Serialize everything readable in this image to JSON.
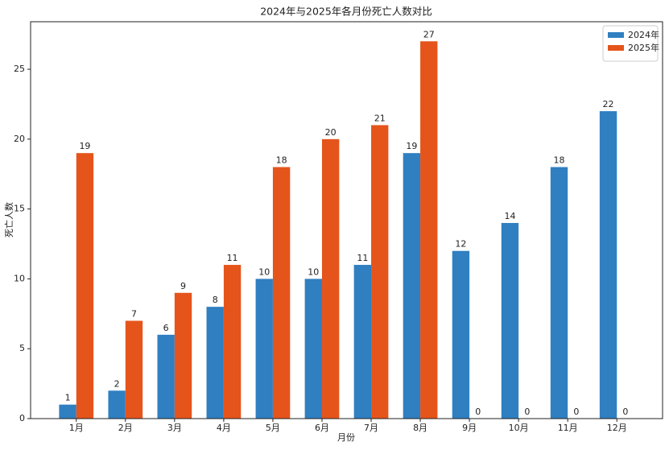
{
  "chart_data": {
    "type": "bar",
    "title": "2024年与2025年各月份死亡人数对比",
    "x_label": "月份",
    "y_label": "死亡人数",
    "categories": [
      "1月",
      "2月",
      "3月",
      "4月",
      "5月",
      "6月",
      "7月",
      "8月",
      "9月",
      "10月",
      "11月",
      "12月"
    ],
    "series": [
      {
        "name": "2024年",
        "color": "#2f7fc1",
        "values": [
          1,
          2,
          6,
          8,
          10,
          10,
          11,
          19,
          12,
          14,
          18,
          22
        ]
      },
      {
        "name": "2025年",
        "color": "#e5541b",
        "values": [
          19,
          7,
          9,
          11,
          18,
          20,
          21,
          27,
          0,
          0,
          0,
          0
        ]
      }
    ],
    "ylim": [
      0,
      28.4
    ],
    "yticks": [
      0,
      5,
      10,
      15,
      20,
      25
    ],
    "legend": "upper right"
  }
}
